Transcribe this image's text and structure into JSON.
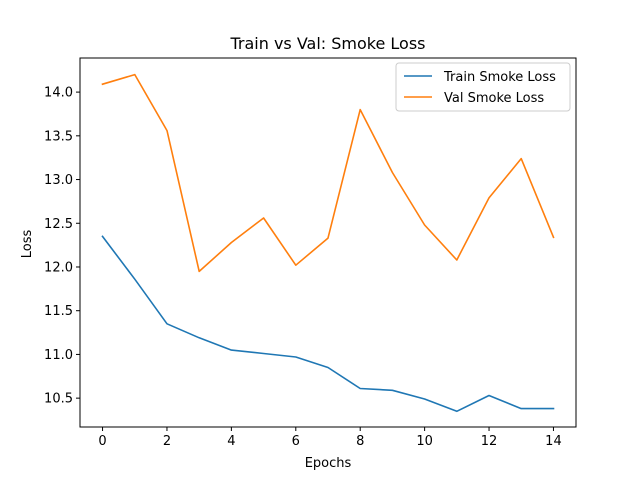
{
  "chart_data": {
    "type": "line",
    "title": "Train vs Val: Smoke Loss",
    "xlabel": "Epochs",
    "ylabel": "Loss",
    "x": [
      0,
      1,
      2,
      3,
      4,
      5,
      6,
      7,
      8,
      9,
      10,
      11,
      12,
      13,
      14
    ],
    "xlim": [
      -0.7,
      14.7
    ],
    "ylim": [
      10.17,
      14.39
    ],
    "xticks": [
      0,
      2,
      4,
      6,
      8,
      10,
      12,
      14
    ],
    "yticks": [
      10.5,
      11.0,
      11.5,
      12.0,
      12.5,
      13.0,
      13.5,
      14.0
    ],
    "ytick_labels": [
      "10.5",
      "11.0",
      "11.5",
      "12.0",
      "12.5",
      "13.0",
      "13.5",
      "14.0"
    ],
    "grid": false,
    "legend_position": "top-right",
    "series": [
      {
        "name": "Train Smoke Loss",
        "color": "#1f77b4",
        "values": [
          12.35,
          11.86,
          11.35,
          11.19,
          11.05,
          11.01,
          10.97,
          10.85,
          10.61,
          10.59,
          10.49,
          10.35,
          10.53,
          10.38,
          10.38
        ]
      },
      {
        "name": "Val Smoke Loss",
        "color": "#ff7f0e",
        "values": [
          14.09,
          14.2,
          13.56,
          11.95,
          12.28,
          12.56,
          12.02,
          12.33,
          13.8,
          13.08,
          12.48,
          12.08,
          12.79,
          13.24,
          12.34
        ]
      }
    ]
  }
}
